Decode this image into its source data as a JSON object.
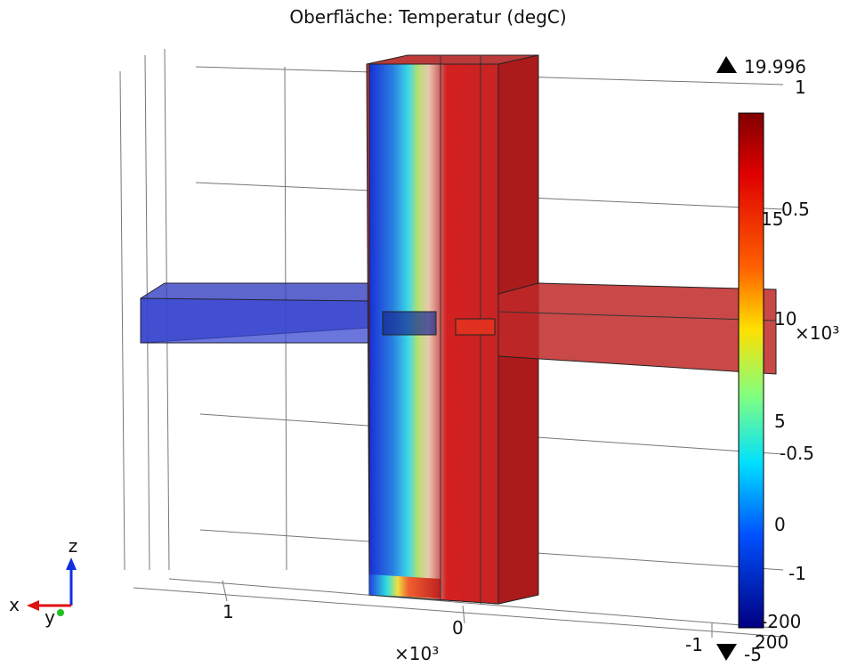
{
  "title": "Oberfläche: Temperatur (degC)",
  "colorbar": {
    "max_label": "19.996",
    "min_label": "-5",
    "ticks": [
      "15",
      "10",
      "5",
      "0"
    ]
  },
  "z_axis_labels": [
    "1",
    "0.5",
    "-0.5",
    "0",
    "-1",
    "-200",
    "200",
    "-1"
  ],
  "z_axis_scale": "×10³",
  "x_axis_labels": [
    "1",
    "0"
  ],
  "x_axis_scale": "×10³",
  "triad": {
    "z": "z",
    "x": "x",
    "y": "y"
  }
}
